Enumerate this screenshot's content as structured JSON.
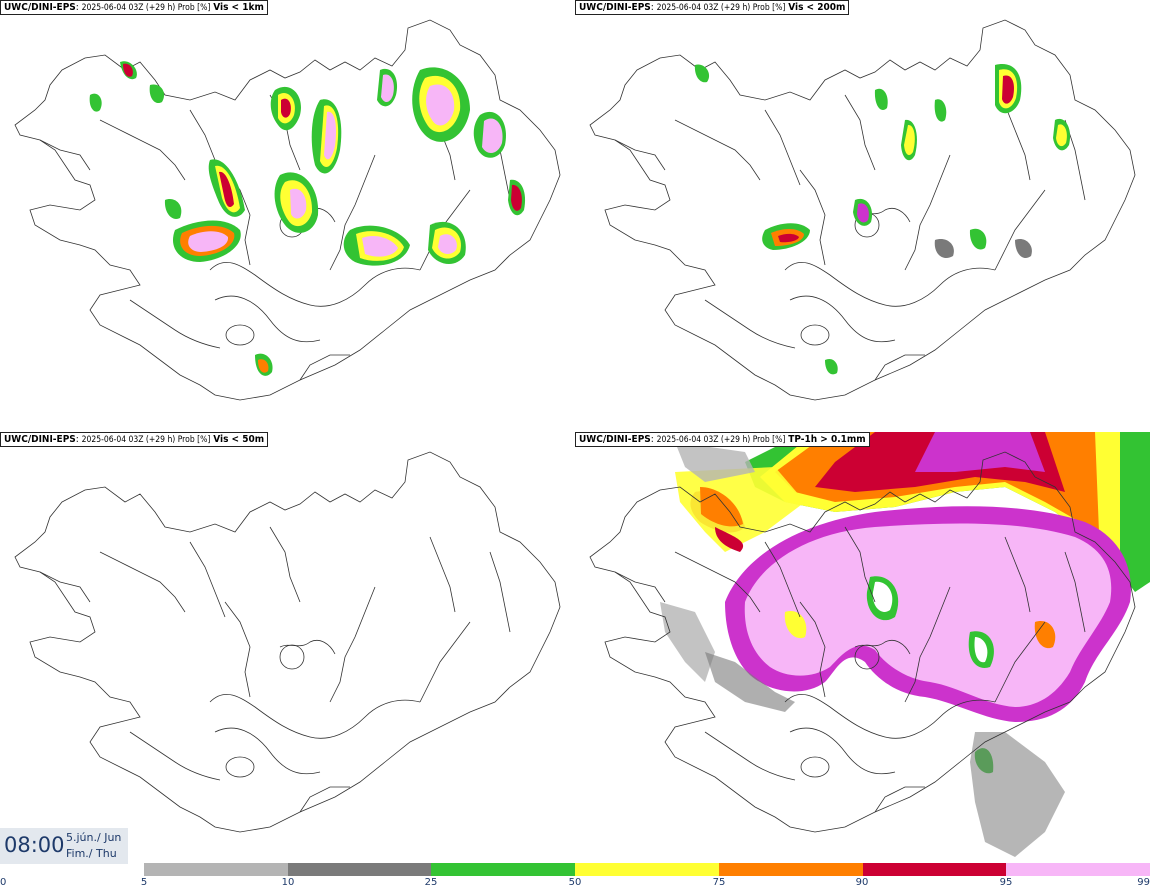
{
  "panels": [
    {
      "model": "UWC/DINI-EPS",
      "meta": "2025-06-04 03Z (+29 h) Prob [%]",
      "param": "Vis < 1km"
    },
    {
      "model": "UWC/DINI-EPS",
      "meta": "2025-06-04 03Z (+29 h) Prob [%]",
      "param": "Vis < 200m"
    },
    {
      "model": "UWC/DINI-EPS",
      "meta": "2025-06-04 03Z (+29 h) Prob [%]",
      "param": "Vis < 50m"
    },
    {
      "model": "UWC/DINI-EPS",
      "meta": "2025-06-04 03Z (+29 h) Prob [%]",
      "param": "TP-1h > 0.1mm"
    }
  ],
  "valid_time": {
    "time": "08:00",
    "date_line1": "5.jún./ Jun",
    "date_line2": "Fim./ Thu"
  },
  "colorbar": {
    "ticks": [
      "0",
      "5",
      "10",
      "25",
      "50",
      "75",
      "90",
      "95",
      "99"
    ],
    "colors": [
      "#ffffff",
      "#b4b4b4",
      "#7a7a7a",
      "#33c333",
      "#ffff33",
      "#ff7f00",
      "#cc0033",
      "#cc33cc",
      "#f7b6f7"
    ]
  }
}
